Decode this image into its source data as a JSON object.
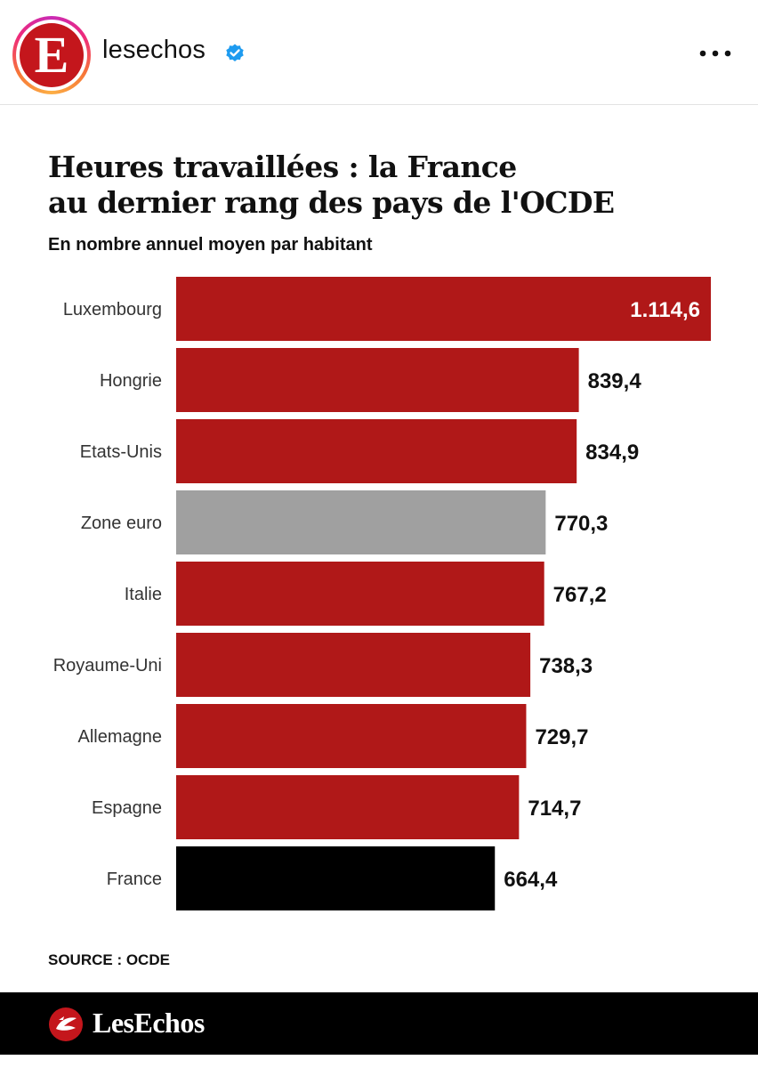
{
  "post": {
    "username": "lesechos",
    "avatar_letter": "E",
    "verified_icon": "verified-badge-icon",
    "more_icon": "more-options-icon"
  },
  "colors": {
    "bar_default": "#b01818",
    "bar_zone_euro": "#a0a0a0",
    "bar_france": "#000000",
    "avatar_bg": "#c4161c",
    "verified": "#1d9bf0"
  },
  "chart_data": {
    "type": "bar",
    "orientation": "horizontal",
    "title": "Heures travaillées : la France au dernier rang des pays de l'OCDE",
    "subtitle": "En nombre annuel moyen par habitant",
    "categories": [
      "Luxembourg",
      "Hongrie",
      "Etats-Unis",
      "Zone euro",
      "Italie",
      "Royaume-Uni",
      "Allemagne",
      "Espagne",
      "France"
    ],
    "values": [
      1114.6,
      839.4,
      834.9,
      770.3,
      767.2,
      738.3,
      729.7,
      714.7,
      664.4
    ],
    "value_labels": [
      "1.114,6",
      "839,4",
      "834,9",
      "770,3",
      "767,2",
      "738,3",
      "729,7",
      "714,7",
      "664,4"
    ],
    "bar_colors": [
      "#b01818",
      "#b01818",
      "#b01818",
      "#a0a0a0",
      "#b01818",
      "#b01818",
      "#b01818",
      "#b01818",
      "#000000"
    ],
    "xlim": [
      0,
      1114.6
    ],
    "grid": false,
    "legend": "none",
    "source": "SOURCE : OCDE"
  },
  "footer": {
    "brand": "LesEchos",
    "logo_icon": "les-echos-logo-icon"
  }
}
